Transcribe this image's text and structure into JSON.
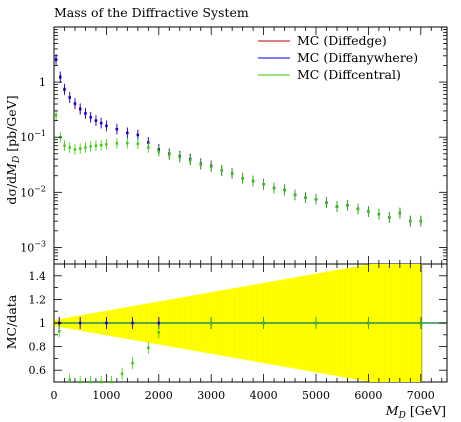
{
  "chart_data": {
    "type": "scatter",
    "title": "Mass of the Diffractive System",
    "xlabel": "M_D [GeV]",
    "xlabel_parts": {
      "symbol": "M",
      "subscript": "D",
      "unit": "[GeV]"
    },
    "xlim": [
      0,
      7500
    ],
    "x_ticks": [
      0,
      1000,
      2000,
      3000,
      4000,
      5000,
      6000,
      7000
    ],
    "x_tick_labels": [
      "0",
      "1000",
      "2000",
      "3000",
      "4000",
      "5000",
      "6000",
      "7000"
    ],
    "upper_panel": {
      "ylabel": "dσ/dM_D [pb/GeV]",
      "ylabel_parts": {
        "pre": "dσ/d",
        "symbol": "M",
        "subscript": "D",
        "unit": " [pb/GeV]"
      },
      "yscale": "log",
      "ylim": [
        0.0005,
        10
      ],
      "y_ticks": [
        1,
        0.1,
        0.01,
        0.001
      ],
      "y_tick_labels": [
        {
          "base": "1",
          "exp": ""
        },
        {
          "base": "10",
          "exp": "−1"
        },
        {
          "base": "10",
          "exp": "−2"
        },
        {
          "base": "10",
          "exp": "−3"
        }
      ]
    },
    "lower_panel": {
      "ylabel": "MC/data",
      "ylim": [
        0.5,
        1.5
      ],
      "y_ticks": [
        1.4,
        1.2,
        1.0,
        0.8,
        0.6
      ],
      "y_tick_labels": [
        "1.4",
        "1.2",
        "1",
        "0.8",
        "0.6"
      ],
      "reference_line": 1.0,
      "band_colors": [
        "#ffff00",
        "#808000"
      ]
    },
    "legend_position": "top-right",
    "series": [
      {
        "name": "MC (Diffedge)",
        "color": "#cc0000",
        "x": [
          40,
          120,
          200,
          300,
          400,
          500,
          600,
          700,
          800,
          900,
          1000,
          1200,
          1400,
          1600,
          1800,
          2000,
          2200,
          2400,
          2600,
          2800,
          3000,
          3200,
          3400,
          3600,
          3800,
          4000,
          4200,
          4400,
          4600,
          4800,
          5000,
          5200,
          5400,
          5600,
          5800,
          6000,
          6200,
          6400,
          6600,
          6800,
          7000
        ],
        "y": [
          2.5,
          1.2,
          0.72,
          0.52,
          0.4,
          0.32,
          0.27,
          0.23,
          0.2,
          0.18,
          0.16,
          0.14,
          0.12,
          0.11,
          0.08,
          0.06,
          0.05,
          0.045,
          0.04,
          0.033,
          0.03,
          0.025,
          0.022,
          0.018,
          0.016,
          0.014,
          0.012,
          0.011,
          0.009,
          0.008,
          0.0075,
          0.0065,
          0.0055,
          0.0058,
          0.005,
          0.0045,
          0.004,
          0.0035,
          0.0042,
          0.003,
          0.003
        ]
      },
      {
        "name": "MC (Diffanywhere)",
        "color": "#0000ee",
        "x": [
          40,
          120,
          200,
          300,
          400,
          500,
          600,
          700,
          800,
          900,
          1000,
          1200,
          1400,
          1600,
          1800,
          2000,
          2200,
          2400,
          2600,
          2800,
          3000,
          3200,
          3400,
          3600,
          3800,
          4000,
          4200,
          4400,
          4600,
          4800,
          5000,
          5200,
          5400,
          5600,
          5800,
          6000,
          6200,
          6400,
          6600,
          6800,
          7000
        ],
        "y": [
          2.6,
          1.25,
          0.75,
          0.53,
          0.41,
          0.33,
          0.27,
          0.23,
          0.2,
          0.18,
          0.16,
          0.14,
          0.12,
          0.11,
          0.08,
          0.06,
          0.05,
          0.045,
          0.04,
          0.033,
          0.03,
          0.025,
          0.022,
          0.018,
          0.016,
          0.014,
          0.012,
          0.011,
          0.009,
          0.008,
          0.0075,
          0.0065,
          0.0055,
          0.0058,
          0.005,
          0.0045,
          0.004,
          0.0035,
          0.0042,
          0.003,
          0.003
        ]
      },
      {
        "name": "MC (Diffcentral)",
        "color": "#33cc00",
        "x": [
          40,
          120,
          200,
          300,
          400,
          500,
          600,
          700,
          800,
          900,
          1000,
          1200,
          1400,
          1600,
          1800,
          2000,
          2200,
          2400,
          2600,
          2800,
          3000,
          3200,
          3400,
          3600,
          3800,
          4000,
          4200,
          4400,
          4600,
          4800,
          5000,
          5200,
          5400,
          5600,
          5800,
          6000,
          6200,
          6400,
          6600,
          6800,
          7000
        ],
        "y": [
          0.25,
          0.1,
          0.07,
          0.065,
          0.06,
          0.062,
          0.065,
          0.068,
          0.07,
          0.072,
          0.074,
          0.077,
          0.078,
          0.076,
          0.065,
          0.055,
          0.048,
          0.043,
          0.038,
          0.032,
          0.029,
          0.025,
          0.022,
          0.018,
          0.016,
          0.014,
          0.012,
          0.011,
          0.009,
          0.008,
          0.0075,
          0.0065,
          0.0055,
          0.0058,
          0.005,
          0.0045,
          0.004,
          0.0035,
          0.0042,
          0.003,
          0.003
        ]
      }
    ],
    "ratio_series": [
      {
        "name": "MC (Diffedge)",
        "color": "#cc0000",
        "x": [
          100,
          500,
          1000,
          1500,
          2000,
          3000,
          4000,
          5000,
          6000,
          7000
        ],
        "y": [
          1.0,
          1.0,
          1.0,
          1.0,
          1.0,
          1.0,
          1.0,
          1.0,
          1.0,
          1.0
        ]
      },
      {
        "name": "MC (Diffanywhere)",
        "color": "#0000ee",
        "x": [
          100,
          500,
          1000,
          1500,
          2000,
          3000,
          4000,
          5000,
          6000,
          7000
        ],
        "y": [
          1.0,
          1.0,
          1.0,
          1.0,
          1.0,
          1.0,
          1.0,
          1.0,
          1.0,
          1.0
        ]
      },
      {
        "name": "MC (Diffcentral)",
        "color": "#33cc00",
        "x": [
          100,
          300,
          500,
          700,
          900,
          1100,
          1300,
          1500,
          1800,
          2000,
          3000,
          4000,
          5000,
          6000,
          7000
        ],
        "y": [
          0.93,
          0.52,
          0.4,
          0.33,
          0.31,
          0.45,
          0.57,
          0.66,
          0.79,
          0.92,
          1.0,
          1.0,
          1.0,
          1.0,
          1.0
        ]
      }
    ]
  }
}
